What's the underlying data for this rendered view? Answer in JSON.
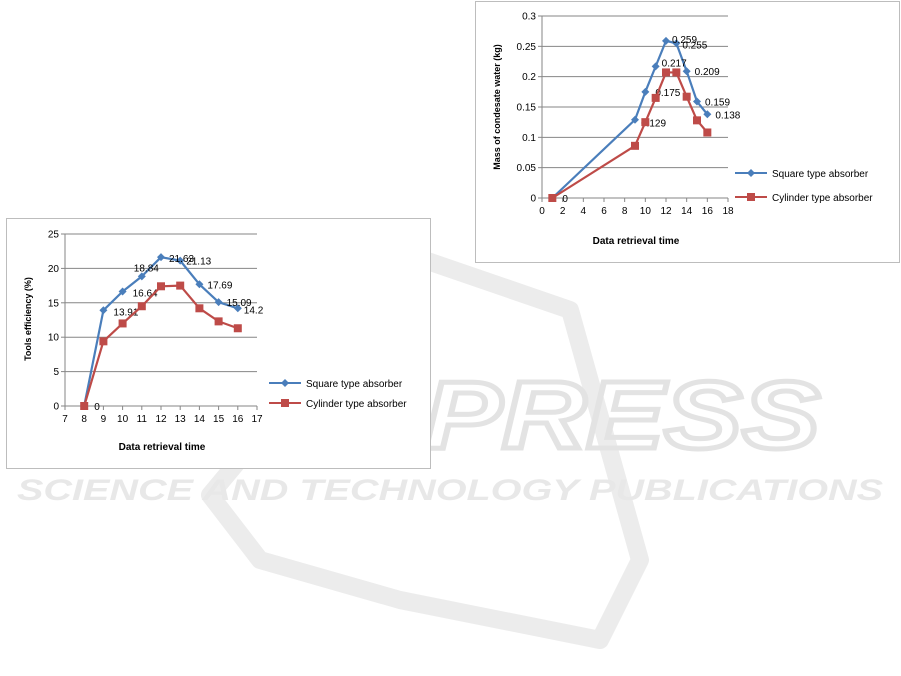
{
  "watermark": {
    "brand": "SCITEPRESS",
    "tagline": "SCIENCE AND TECHNOLOGY PUBLICATIONS",
    "color": "#e6e6e6"
  },
  "colors": {
    "square": "#4a7ebb",
    "cylinder": "#be4b48",
    "gridline": "#868686",
    "axis": "#868686",
    "text": "#000000"
  },
  "legend": {
    "square": "Square type absorber",
    "cylinder": "Cylinder type absorber"
  },
  "chart_data": [
    {
      "id": "efficiency",
      "type": "line",
      "xlabel": "Data retrieval time",
      "ylabel": "Tools efficiency (%)",
      "xlim": [
        7,
        17
      ],
      "ylim": [
        0,
        25
      ],
      "xticks": [
        "7",
        "8",
        "9",
        "10",
        "11",
        "12",
        "13",
        "14",
        "15",
        "16",
        "17"
      ],
      "yticks": [
        "0",
        "5",
        "10",
        "15",
        "20",
        "25"
      ],
      "grid": true,
      "legend_position": "right",
      "series": [
        {
          "name": "Square type absorber",
          "color_key": "square",
          "marker": "diamond",
          "x": [
            8,
            9,
            10,
            11,
            12,
            13,
            14,
            15,
            16
          ],
          "y": [
            0,
            13.91,
            16.64,
            18.84,
            21.63,
            21.13,
            17.69,
            15.09,
            14.2
          ],
          "labels": [
            "0",
            "13.91",
            "16.64",
            "18.84",
            "21.63",
            "21.13",
            "17.69",
            "15.09",
            "14.2"
          ]
        },
        {
          "name": "Cylinder type absorber",
          "color_key": "cylinder",
          "marker": "square",
          "x": [
            8,
            9,
            10,
            11,
            12,
            13,
            14,
            15,
            16
          ],
          "y": [
            0,
            9.4,
            12.0,
            14.5,
            17.4,
            17.5,
            14.2,
            12.3,
            11.3
          ]
        }
      ]
    },
    {
      "id": "condensate",
      "type": "line",
      "xlabel": "Data retrieval time",
      "ylabel": "Mass of condesate water (kg)",
      "xlim": [
        0,
        18
      ],
      "ylim": [
        0,
        0.3
      ],
      "xticks": [
        "0",
        "2",
        "4",
        "6",
        "8",
        "10",
        "12",
        "14",
        "16",
        "18"
      ],
      "yticks": [
        "0",
        "0.05",
        "0.1",
        "0.15",
        "0.2",
        "0.25",
        "0.3"
      ],
      "grid": true,
      "legend_position": "right",
      "series": [
        {
          "name": "Square type absorber",
          "color_key": "square",
          "marker": "diamond",
          "x": [
            1,
            9,
            10,
            11,
            12,
            13,
            14,
            15,
            16
          ],
          "y": [
            0,
            0.129,
            0.175,
            0.217,
            0.259,
            0.255,
            0.209,
            0.159,
            0.138
          ],
          "labels": [
            "0",
            "0.129",
            "0.175",
            "0.217",
            "0.259",
            "0.255",
            "0.209",
            "0.159",
            "0.138"
          ]
        },
        {
          "name": "Cylinder type absorber",
          "color_key": "cylinder",
          "marker": "square",
          "x": [
            1,
            9,
            10,
            11,
            12,
            13,
            14,
            15,
            16
          ],
          "y": [
            0,
            0.086,
            0.125,
            0.165,
            0.207,
            0.207,
            0.167,
            0.128,
            0.108
          ]
        }
      ]
    }
  ]
}
